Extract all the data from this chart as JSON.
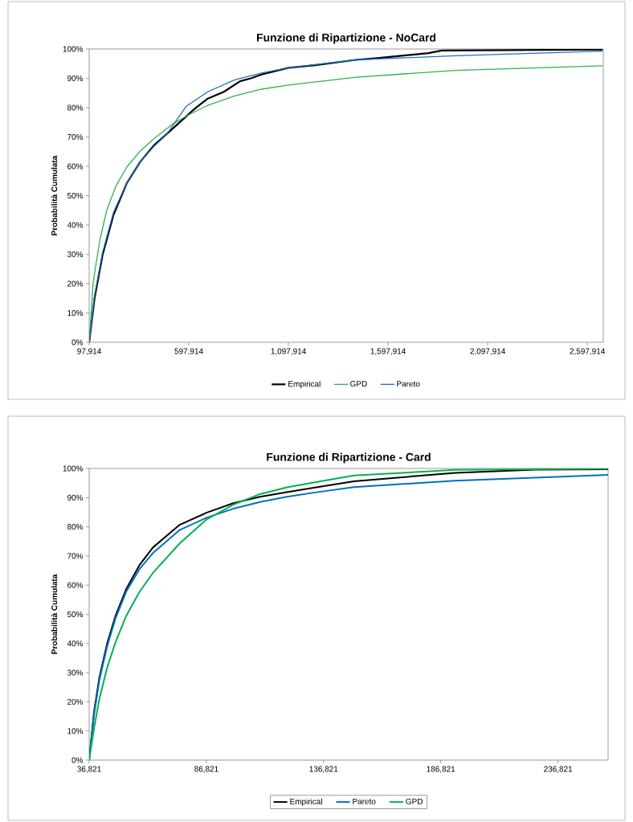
{
  "chart_data": [
    {
      "type": "line",
      "title": "Funzione di Ripartizione - NoCard",
      "ylabel": "Probabilità Cumulata",
      "xlim": [
        97914,
        2678000
      ],
      "ylim": [
        0,
        100
      ],
      "xticks": [
        {
          "value": 97914,
          "label": "97,914"
        },
        {
          "value": 597914,
          "label": "597,914"
        },
        {
          "value": 1097914,
          "label": "1,097,914"
        },
        {
          "value": 1597914,
          "label": "1,597,914"
        },
        {
          "value": 2097914,
          "label": "2,097,914"
        },
        {
          "value": 2597914,
          "label": "2,597,914"
        }
      ],
      "yticks": [
        {
          "value": 0,
          "label": "0%"
        },
        {
          "value": 10,
          "label": "10%"
        },
        {
          "value": 20,
          "label": "20%"
        },
        {
          "value": 30,
          "label": "30%"
        },
        {
          "value": 40,
          "label": "40%"
        },
        {
          "value": 50,
          "label": "50%"
        },
        {
          "value": 60,
          "label": "60%"
        },
        {
          "value": 70,
          "label": "70%"
        },
        {
          "value": 80,
          "label": "80%"
        },
        {
          "value": 90,
          "label": "90%"
        },
        {
          "value": 100,
          "label": "100%"
        }
      ],
      "legend": "bottom",
      "grid": false,
      "series": [
        {
          "name": "Empirical",
          "color": "#000000",
          "x": [
            97914,
            125000,
            165000,
            220000,
            287000,
            355000,
            422000,
            490000,
            557000,
            625000,
            693000,
            774000,
            855000,
            909000,
            963000,
            1098000,
            1233000,
            1436000,
            1532000,
            1800000,
            1868000,
            2675000
          ],
          "values": [
            0,
            15,
            29.7,
            43.4,
            54.3,
            61.6,
            67.1,
            71.2,
            75.3,
            79.5,
            83.1,
            85.4,
            89.0,
            90.0,
            91.3,
            93.6,
            94.5,
            96.3,
            96.8,
            98.6,
            99.5,
            99.8
          ]
        },
        {
          "name": "GPD",
          "color": "#2db34a",
          "x": [
            97914,
            118000,
            152000,
            186000,
            233000,
            287000,
            355000,
            422000,
            517000,
            598000,
            693000,
            828000,
            963000,
            1098000,
            1263000,
            1436000,
            1935000,
            2675000
          ],
          "values": [
            0,
            20.5,
            35,
            45,
            53.4,
            59.8,
            65.3,
            69.4,
            74.4,
            77.6,
            80.8,
            84,
            86.3,
            87.7,
            89.0,
            90.4,
            92.7,
            94.3
          ]
        },
        {
          "name": "Pareto",
          "color": "#1f6fc0",
          "x": [
            97914,
            125000,
            165000,
            220000,
            287000,
            355000,
            422000,
            490000,
            584000,
            693000,
            828000,
            963000,
            1098000,
            1436000,
            1935000,
            2675000
          ],
          "values": [
            0,
            16,
            30.6,
            44.3,
            54.3,
            61.6,
            66.7,
            71.2,
            80.4,
            85.4,
            89.5,
            91.8,
            93.6,
            96.3,
            97.7,
            99.3
          ]
        }
      ]
    },
    {
      "type": "line",
      "title": "Funzione di Ripartizione - Card",
      "ylabel": "Probabilità Cumulata",
      "xlim": [
        36821,
        258200
      ],
      "ylim": [
        0,
        100
      ],
      "xticks": [
        {
          "value": 36821,
          "label": "36,821"
        },
        {
          "value": 86821,
          "label": "86,821"
        },
        {
          "value": 136821,
          "label": "136,821"
        },
        {
          "value": 186821,
          "label": "186,821"
        },
        {
          "value": 236821,
          "label": "236,821"
        }
      ],
      "yticks": [
        {
          "value": 0,
          "label": "0%"
        },
        {
          "value": 10,
          "label": "10%"
        },
        {
          "value": 20,
          "label": "20%"
        },
        {
          "value": 30,
          "label": "30%"
        },
        {
          "value": 40,
          "label": "40%"
        },
        {
          "value": 50,
          "label": "50%"
        },
        {
          "value": 60,
          "label": "60%"
        },
        {
          "value": 70,
          "label": "70%"
        },
        {
          "value": 80,
          "label": "80%"
        },
        {
          "value": 90,
          "label": "90%"
        },
        {
          "value": 100,
          "label": "100%"
        }
      ],
      "legend": "bottom",
      "grid": false,
      "series": [
        {
          "name": "Empirical",
          "color": "#000000",
          "x": [
            36821,
            38878,
            41164,
            44592,
            48021,
            52592,
            58307,
            64021,
            75450,
            86821,
            98307,
            109735,
            121164,
            132592,
            149735,
            192998,
            227290,
            258170
          ],
          "values": [
            0,
            16.4,
            28.3,
            40.3,
            49.4,
            58.6,
            66.9,
            72.9,
            80.7,
            84.8,
            88.1,
            90.3,
            91.9,
            93.4,
            95.6,
            98.5,
            99.6,
            99.7
          ]
        },
        {
          "name": "Pareto",
          "color": "#0070c0",
          "x": [
            36821,
            38878,
            41164,
            44592,
            48021,
            52592,
            58307,
            64021,
            75450,
            86821,
            98307,
            109735,
            121164,
            132592,
            149735,
            192998,
            258170
          ],
          "values": [
            0,
            15.4,
            27.4,
            39.3,
            48.5,
            57.7,
            65.5,
            71,
            78.9,
            83.1,
            86.2,
            88.5,
            90.3,
            91.7,
            93.6,
            95.8,
            97.8
          ]
        },
        {
          "name": "GPD",
          "color": "#00b050",
          "x": [
            36821,
            38878,
            41164,
            44592,
            48021,
            52592,
            58307,
            64021,
            75450,
            86821,
            98307,
            109735,
            121164,
            132592,
            149735,
            192998,
            258170
          ],
          "values": [
            0,
            10.8,
            20.9,
            32,
            40.3,
            49.4,
            57.7,
            64.2,
            74.3,
            82.5,
            87.6,
            91.2,
            93.5,
            95.2,
            97.6,
            99.5,
            99.9
          ]
        }
      ]
    }
  ]
}
